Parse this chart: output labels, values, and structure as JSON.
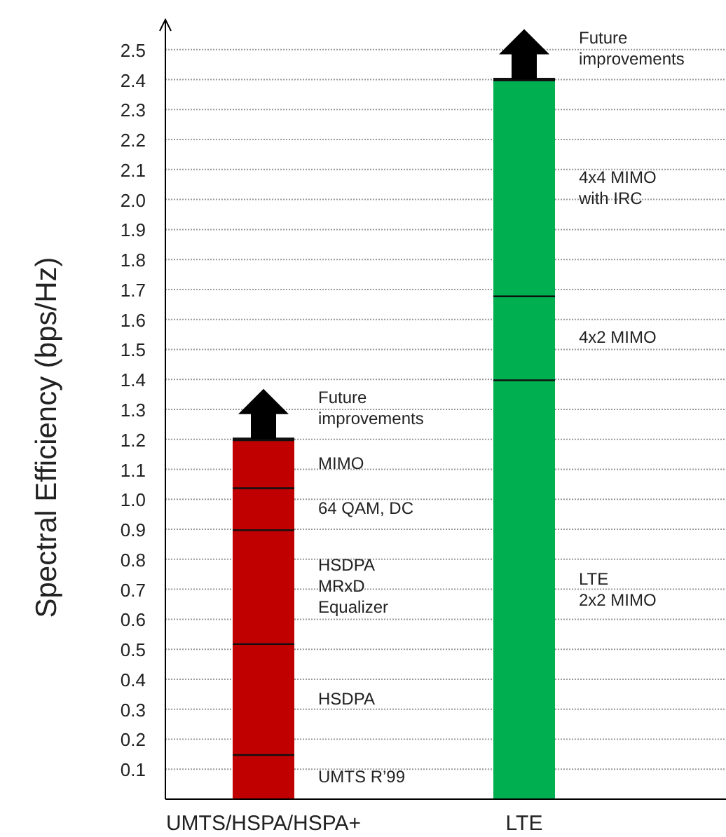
{
  "chart_data": {
    "type": "bar",
    "stacked": true,
    "ylabel": "Spectral Efficiency (bps/Hz)",
    "categories": [
      "UMTS/HSPA/HSPA+",
      "LTE"
    ],
    "series": [
      {
        "name": "UMTS R’99",
        "color": "#c00000",
        "values": [
          0.15,
          null
        ]
      },
      {
        "name": "HSDPA",
        "color": "#c00000",
        "values": [
          0.37,
          null
        ]
      },
      {
        "name": "HSDPA\nMRxD\nEqualizer",
        "color": "#c00000",
        "values": [
          0.38,
          null
        ]
      },
      {
        "name": "64 QAM, DC",
        "color": "#c00000",
        "values": [
          0.14,
          null
        ]
      },
      {
        "name": "MIMO",
        "color": "#c00000",
        "values": [
          0.16,
          null
        ]
      },
      {
        "name": "LTE\n2x2 MIMO",
        "color": "#00b050",
        "values": [
          null,
          1.4
        ]
      },
      {
        "name": "4x2 MIMO",
        "color": "#00b050",
        "values": [
          null,
          0.28
        ]
      },
      {
        "name": "4x4 MIMO\nwith IRC",
        "color": "#00b050",
        "values": [
          null,
          0.72
        ]
      }
    ],
    "annotations": [
      "Future improvements",
      "Future improvements"
    ],
    "ylim": [
      0,
      2.6
    ],
    "yticks": [
      0.1,
      0.2,
      0.3,
      0.4,
      0.5,
      0.6,
      0.7,
      0.8,
      0.9,
      {
        "value": 1,
        "label": "1.0"
      },
      1.1,
      1.2,
      1.3,
      1.4,
      1.5,
      1.6,
      1.7,
      1.8,
      1.9,
      {
        "value": 2,
        "label": "2.0"
      },
      2.1,
      2.2,
      2.3,
      2.4,
      2.5
    ],
    "grid": "y"
  }
}
